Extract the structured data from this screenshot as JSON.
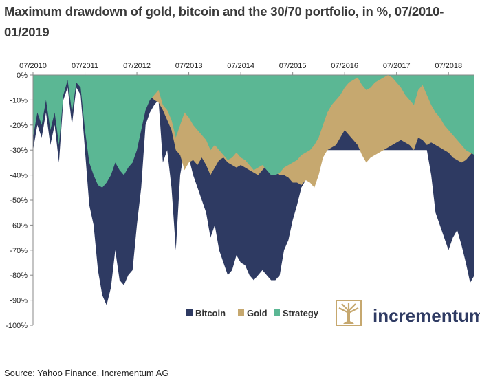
{
  "title": "Maximum drawdown of gold, bitcoin and the 30/70 portfolio, in %, 07/2010-01/2019",
  "source": "Source: Yahoo Finance, Incrementum AG",
  "logo": {
    "text": "incrementum",
    "icon": "tree-logo-icon"
  },
  "colors": {
    "bitcoin": "#2e3a62",
    "gold": "#c6a86f",
    "strategy": "#5bb794",
    "axis": "#888888"
  },
  "chart_data": {
    "type": "area",
    "x_ticks": [
      "07/2010",
      "07/2011",
      "07/2012",
      "07/2013",
      "07/2014",
      "07/2015",
      "07/2016",
      "07/2017",
      "07/2018"
    ],
    "y_ticks": [
      "0%",
      "-10%",
      "-20%",
      "-30%",
      "-40%",
      "-50%",
      "-60%",
      "-70%",
      "-80%",
      "-90%",
      "-100%"
    ],
    "ylim": [
      -100,
      0
    ],
    "xlim": [
      "07/2010",
      "01/2019"
    ],
    "legend_position": "bottom-right",
    "x": [
      "07/2010",
      "08/2010",
      "09/2010",
      "10/2010",
      "11/2010",
      "12/2010",
      "01/2011",
      "02/2011",
      "03/2011",
      "04/2011",
      "05/2011",
      "06/2011",
      "07/2011",
      "08/2011",
      "09/2011",
      "10/2011",
      "11/2011",
      "12/2011",
      "01/2012",
      "02/2012",
      "03/2012",
      "04/2012",
      "05/2012",
      "06/2012",
      "07/2012",
      "08/2012",
      "09/2012",
      "10/2012",
      "11/2012",
      "12/2012",
      "01/2013",
      "02/2013",
      "03/2013",
      "04/2013",
      "05/2013",
      "06/2013",
      "07/2013",
      "08/2013",
      "09/2013",
      "10/2013",
      "11/2013",
      "12/2013",
      "01/2014",
      "02/2014",
      "03/2014",
      "04/2014",
      "05/2014",
      "06/2014",
      "07/2014",
      "08/2014",
      "09/2014",
      "10/2014",
      "11/2014",
      "12/2014",
      "01/2015",
      "02/2015",
      "03/2015",
      "04/2015",
      "05/2015",
      "06/2015",
      "07/2015",
      "08/2015",
      "09/2015",
      "10/2015",
      "11/2015",
      "12/2015",
      "01/2016",
      "02/2016",
      "03/2016",
      "04/2016",
      "05/2016",
      "06/2016",
      "07/2016",
      "08/2016",
      "09/2016",
      "10/2016",
      "11/2016",
      "12/2016",
      "01/2017",
      "02/2017",
      "03/2017",
      "04/2017",
      "05/2017",
      "06/2017",
      "07/2017",
      "08/2017",
      "09/2017",
      "10/2017",
      "11/2017",
      "12/2017",
      "01/2018",
      "02/2018",
      "03/2018",
      "04/2018",
      "05/2018",
      "06/2018",
      "07/2018",
      "08/2018",
      "09/2018",
      "10/2018",
      "11/2018",
      "12/2018",
      "01/2019"
    ],
    "series": [
      {
        "name": "Bitcoin",
        "values": [
          -30,
          -20,
          -25,
          -15,
          -28,
          -20,
          -35,
          -10,
          -5,
          -20,
          -5,
          -8,
          -30,
          -52,
          -60,
          -78,
          -88,
          -92,
          -85,
          -70,
          -82,
          -84,
          -80,
          -78,
          -60,
          -45,
          -20,
          -15,
          -12,
          -10,
          -35,
          -30,
          -45,
          -70,
          -40,
          -30,
          -33,
          -40,
          -45,
          -50,
          -55,
          -65,
          -60,
          -70,
          -75,
          -80,
          -78,
          -72,
          -75,
          -76,
          -80,
          -82,
          -80,
          -78,
          -80,
          -82,
          -82,
          -80,
          -70,
          -66,
          -58,
          -52,
          -45,
          -42,
          -40,
          -38,
          -36,
          -32,
          -30,
          -30,
          -30,
          -30,
          -30,
          -30,
          -30,
          -30,
          -30,
          -30,
          -30,
          -30,
          -30,
          -30,
          -30,
          -30,
          -30,
          -30,
          -30,
          -30,
          -30,
          -30,
          -30,
          -30,
          -40,
          -55,
          -60,
          -65,
          -70,
          -65,
          -62,
          -68,
          -75,
          -83,
          -80
        ]
      },
      {
        "name": "Gold",
        "values": [
          -3,
          -2,
          -1,
          0,
          -1,
          -2,
          -4,
          -3,
          -1,
          0,
          -1,
          -2,
          -1,
          0,
          -2,
          -4,
          -5,
          -8,
          -6,
          -7,
          -9,
          -10,
          -12,
          -11,
          -13,
          -11,
          -9,
          -8,
          -10,
          -11,
          -14,
          -18,
          -22,
          -30,
          -32,
          -38,
          -35,
          -34,
          -36,
          -33,
          -36,
          -40,
          -37,
          -34,
          -33,
          -35,
          -36,
          -37,
          -36,
          -37,
          -38,
          -39,
          -40,
          -38,
          -36,
          -37,
          -39,
          -40,
          -40,
          -41,
          -43,
          -43,
          -44,
          -42,
          -43,
          -45,
          -40,
          -33,
          -30,
          -29,
          -28,
          -25,
          -22,
          -24,
          -26,
          -28,
          -32,
          -35,
          -33,
          -32,
          -31,
          -30,
          -29,
          -28,
          -27,
          -26,
          -27,
          -28,
          -30,
          -25,
          -26,
          -28,
          -27,
          -28,
          -29,
          -30,
          -31,
          -33,
          -34,
          -35,
          -34,
          -32,
          -30
        ]
      },
      {
        "name": "Strategy",
        "values": [
          -25,
          -15,
          -20,
          -10,
          -22,
          -15,
          -28,
          -8,
          -2,
          -15,
          -3,
          -5,
          -22,
          -35,
          -40,
          -44,
          -45,
          -43,
          -40,
          -35,
          -38,
          -40,
          -37,
          -35,
          -30,
          -22,
          -14,
          -10,
          -8,
          -6,
          -12,
          -14,
          -18,
          -25,
          -20,
          -15,
          -17,
          -20,
          -22,
          -24,
          -26,
          -30,
          -28,
          -30,
          -32,
          -34,
          -33,
          -31,
          -33,
          -34,
          -36,
          -38,
          -37,
          -36,
          -38,
          -40,
          -40,
          -39,
          -37,
          -36,
          -35,
          -34,
          -32,
          -31,
          -30,
          -28,
          -25,
          -20,
          -15,
          -12,
          -10,
          -8,
          -5,
          -3,
          -2,
          -1,
          -4,
          -6,
          -5,
          -3,
          -2,
          -1,
          0,
          -1,
          -3,
          -5,
          -8,
          -10,
          -12,
          -6,
          -4,
          -8,
          -12,
          -15,
          -17,
          -20,
          -22,
          -24,
          -26,
          -28,
          -30,
          -31,
          -32
        ]
      }
    ]
  }
}
